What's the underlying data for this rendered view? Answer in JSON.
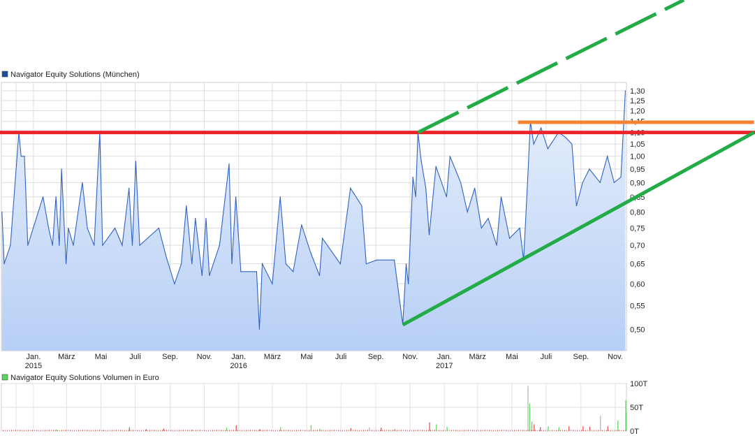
{
  "chart_data": [
    {
      "type": "area",
      "legend": "Navigator Equity Solutions (München)",
      "legend_color": "#1f4f9c",
      "line_color": "#2f62c4",
      "fill_top": "#e8f0fc",
      "fill_bottom": "#b7cff5",
      "y_scale": "log",
      "ylim": [
        0.459,
        1.344
      ],
      "xlim": [
        "2014-11-05",
        "2017-11-21"
      ],
      "grid": true,
      "y_ticks": [
        "1,30",
        "1,25",
        "1,20",
        "1,15",
        "1,10",
        "1,05",
        "1,00",
        "0,95",
        "0,90",
        "0,85",
        "0,80",
        "0,75",
        "0,70",
        "0,65",
        "0,60",
        "0,55",
        "0,50"
      ],
      "x_ticks": [
        {
          "date": "2014-12-01",
          "label": ""
        },
        {
          "date": "2015-01-01",
          "label": "Jan.",
          "year": "2015"
        },
        {
          "date": "2015-03-01",
          "label": "März"
        },
        {
          "date": "2015-05-01",
          "label": "Mai"
        },
        {
          "date": "2015-07-01",
          "label": "Juli"
        },
        {
          "date": "2015-09-01",
          "label": "Sep."
        },
        {
          "date": "2015-11-01",
          "label": "Nov."
        },
        {
          "date": "2016-01-01",
          "label": "Jan.",
          "year": "2016"
        },
        {
          "date": "2016-03-01",
          "label": "März"
        },
        {
          "date": "2016-05-01",
          "label": "Mai"
        },
        {
          "date": "2016-07-01",
          "label": "Juli"
        },
        {
          "date": "2016-09-01",
          "label": "Sep."
        },
        {
          "date": "2016-11-01",
          "label": "Nov."
        },
        {
          "date": "2017-01-01",
          "label": "Jan.",
          "year": "2017"
        },
        {
          "date": "2017-03-01",
          "label": "März"
        },
        {
          "date": "2017-05-01",
          "label": "Mai"
        },
        {
          "date": "2017-07-01",
          "label": "Juli"
        },
        {
          "date": "2017-09-01",
          "label": "Sep."
        },
        {
          "date": "2017-11-01",
          "label": "Nov."
        }
      ],
      "points": [
        [
          "2014-11-06",
          0.8
        ],
        [
          "2014-11-10",
          0.65
        ],
        [
          "2014-11-21",
          0.7
        ],
        [
          "2014-12-06",
          1.1
        ],
        [
          "2014-12-10",
          1.0
        ],
        [
          "2014-12-16",
          1.0
        ],
        [
          "2014-12-22",
          0.7
        ],
        [
          "2015-01-18",
          0.85
        ],
        [
          "2015-01-28",
          0.75
        ],
        [
          "2015-02-04",
          0.7
        ],
        [
          "2015-02-10",
          0.85
        ],
        [
          "2015-02-16",
          0.7
        ],
        [
          "2015-02-20",
          0.95
        ],
        [
          "2015-02-28",
          0.65
        ],
        [
          "2015-03-04",
          0.75
        ],
        [
          "2015-03-13",
          0.7
        ],
        [
          "2015-03-29",
          0.9
        ],
        [
          "2015-04-07",
          0.75
        ],
        [
          "2015-04-19",
          0.7
        ],
        [
          "2015-04-29",
          1.1
        ],
        [
          "2015-05-04",
          0.7
        ],
        [
          "2015-05-26",
          0.75
        ],
        [
          "2015-06-08",
          0.7
        ],
        [
          "2015-06-20",
          0.88
        ],
        [
          "2015-06-26",
          0.7
        ],
        [
          "2015-07-02",
          0.98
        ],
        [
          "2015-07-09",
          0.7
        ],
        [
          "2015-08-12",
          0.75
        ],
        [
          "2015-08-25",
          0.67
        ],
        [
          "2015-09-09",
          0.6
        ],
        [
          "2015-09-21",
          0.65
        ],
        [
          "2015-09-30",
          0.82
        ],
        [
          "2015-10-10",
          0.65
        ],
        [
          "2015-10-16",
          0.78
        ],
        [
          "2015-10-28",
          0.62
        ],
        [
          "2015-11-04",
          0.78
        ],
        [
          "2015-11-10",
          0.62
        ],
        [
          "2015-11-28",
          0.7
        ],
        [
          "2015-12-15",
          0.97
        ],
        [
          "2015-12-20",
          0.65
        ],
        [
          "2015-12-27",
          0.85
        ],
        [
          "2016-01-05",
          0.63
        ],
        [
          "2016-02-02",
          0.63
        ],
        [
          "2016-02-07",
          0.5
        ],
        [
          "2016-02-12",
          0.65
        ],
        [
          "2016-03-01",
          0.6
        ],
        [
          "2016-03-15",
          0.85
        ],
        [
          "2016-03-25",
          0.65
        ],
        [
          "2016-04-07",
          0.63
        ],
        [
          "2016-04-22",
          0.76
        ],
        [
          "2016-05-08",
          0.68
        ],
        [
          "2016-05-24",
          0.62
        ],
        [
          "2016-05-29",
          0.72
        ],
        [
          "2016-06-30",
          0.65
        ],
        [
          "2016-07-18",
          0.88
        ],
        [
          "2016-08-07",
          0.82
        ],
        [
          "2016-08-15",
          0.65
        ],
        [
          "2016-09-03",
          0.66
        ],
        [
          "2016-10-04",
          0.66
        ],
        [
          "2016-10-19",
          0.51
        ],
        [
          "2016-10-25",
          0.65
        ],
        [
          "2016-10-29",
          0.6
        ],
        [
          "2016-11-06",
          0.92
        ],
        [
          "2016-11-11",
          0.85
        ],
        [
          "2016-11-15",
          1.1
        ],
        [
          "2016-11-21",
          0.98
        ],
        [
          "2016-11-29",
          0.88
        ],
        [
          "2016-12-05",
          0.73
        ],
        [
          "2016-12-17",
          0.96
        ],
        [
          "2017-01-05",
          0.85
        ],
        [
          "2017-01-11",
          1.0
        ],
        [
          "2017-01-30",
          0.9
        ],
        [
          "2017-02-11",
          0.8
        ],
        [
          "2017-02-24",
          0.88
        ],
        [
          "2017-03-08",
          0.75
        ],
        [
          "2017-03-20",
          0.78
        ],
        [
          "2017-04-04",
          0.7
        ],
        [
          "2017-04-12",
          0.85
        ],
        [
          "2017-04-27",
          0.72
        ],
        [
          "2017-05-15",
          0.75
        ],
        [
          "2017-05-22",
          0.66
        ],
        [
          "2017-05-29",
          0.9
        ],
        [
          "2017-06-03",
          1.15
        ],
        [
          "2017-06-09",
          1.05
        ],
        [
          "2017-06-22",
          1.12
        ],
        [
          "2017-07-04",
          1.03
        ],
        [
          "2017-07-23",
          1.1
        ],
        [
          "2017-08-04",
          1.08
        ],
        [
          "2017-08-16",
          1.05
        ],
        [
          "2017-08-24",
          0.82
        ],
        [
          "2017-09-04",
          0.9
        ],
        [
          "2017-09-16",
          0.95
        ],
        [
          "2017-10-05",
          0.9
        ],
        [
          "2017-10-18",
          1.0
        ],
        [
          "2017-10-30",
          0.9
        ],
        [
          "2017-11-11",
          0.92
        ],
        [
          "2017-11-19",
          1.3
        ]
      ],
      "annotations": [
        {
          "kind": "horizontal",
          "price": 1.1,
          "color": "#ee2229"
        },
        {
          "kind": "segment",
          "from": [
            "2017-05-12",
            1.146
          ],
          "to": [
            "2018-07-06",
            1.146
          ],
          "color": "#f58333"
        },
        {
          "kind": "segment",
          "from": [
            "2016-10-19",
            0.509
          ],
          "to": [
            "2018-07-06",
            1.1
          ],
          "color": "#22ab46"
        },
        {
          "kind": "dashed-segment",
          "from": [
            "2016-11-15",
            1.1
          ],
          "to": [
            "2018-03-03",
            1.87
          ],
          "color": "#22ab46"
        }
      ]
    },
    {
      "type": "bar",
      "legend": "Navigator Equity Solutions Volumen in Euro",
      "legend_color": "#5ad65a",
      "ylim": [
        0,
        100
      ],
      "y_ticks": [
        "100T",
        "50T",
        "0T"
      ],
      "up_color": "#5ad65a",
      "down_color": "#e04848",
      "neutral_color": "#b0b0b0",
      "bars": [
        [
          "2015-02-10",
          3,
          "up"
        ],
        [
          "2015-05-04",
          2,
          "up"
        ],
        [
          "2015-06-20",
          8,
          "down"
        ],
        [
          "2015-07-20",
          4,
          "down"
        ],
        [
          "2015-08-20",
          5,
          "down"
        ],
        [
          "2015-10-10",
          3,
          "up"
        ],
        [
          "2015-12-10",
          7,
          "up"
        ],
        [
          "2015-12-27",
          12,
          "down"
        ],
        [
          "2016-02-07",
          4,
          "down"
        ],
        [
          "2016-03-15",
          8,
          "up"
        ],
        [
          "2016-05-08",
          12,
          "up"
        ],
        [
          "2016-05-24",
          5,
          "up"
        ],
        [
          "2016-07-18",
          6,
          "down"
        ],
        [
          "2016-08-20",
          8,
          "neutral"
        ],
        [
          "2016-09-10",
          7,
          "down"
        ],
        [
          "2016-10-04",
          4,
          "down"
        ],
        [
          "2016-12-05",
          18,
          "down"
        ],
        [
          "2016-12-17",
          14,
          "green"
        ],
        [
          "2017-01-05",
          9,
          "up"
        ],
        [
          "2017-05-29",
          95,
          "neutral"
        ],
        [
          "2017-06-01",
          58,
          "up"
        ],
        [
          "2017-06-05",
          20,
          "up"
        ],
        [
          "2017-06-09",
          14,
          "down"
        ],
        [
          "2017-06-20",
          8,
          "down"
        ],
        [
          "2017-07-04",
          10,
          "up"
        ],
        [
          "2017-07-23",
          8,
          "up"
        ],
        [
          "2017-08-10",
          10,
          "down"
        ],
        [
          "2017-09-04",
          10,
          "down"
        ],
        [
          "2017-09-16",
          9,
          "down"
        ],
        [
          "2017-10-05",
          32,
          "neutral"
        ],
        [
          "2017-10-18",
          10,
          "down"
        ],
        [
          "2017-11-05",
          22,
          "up"
        ],
        [
          "2017-11-19",
          65,
          "up"
        ],
        [
          "2017-11-20",
          40,
          "up"
        ]
      ]
    }
  ]
}
